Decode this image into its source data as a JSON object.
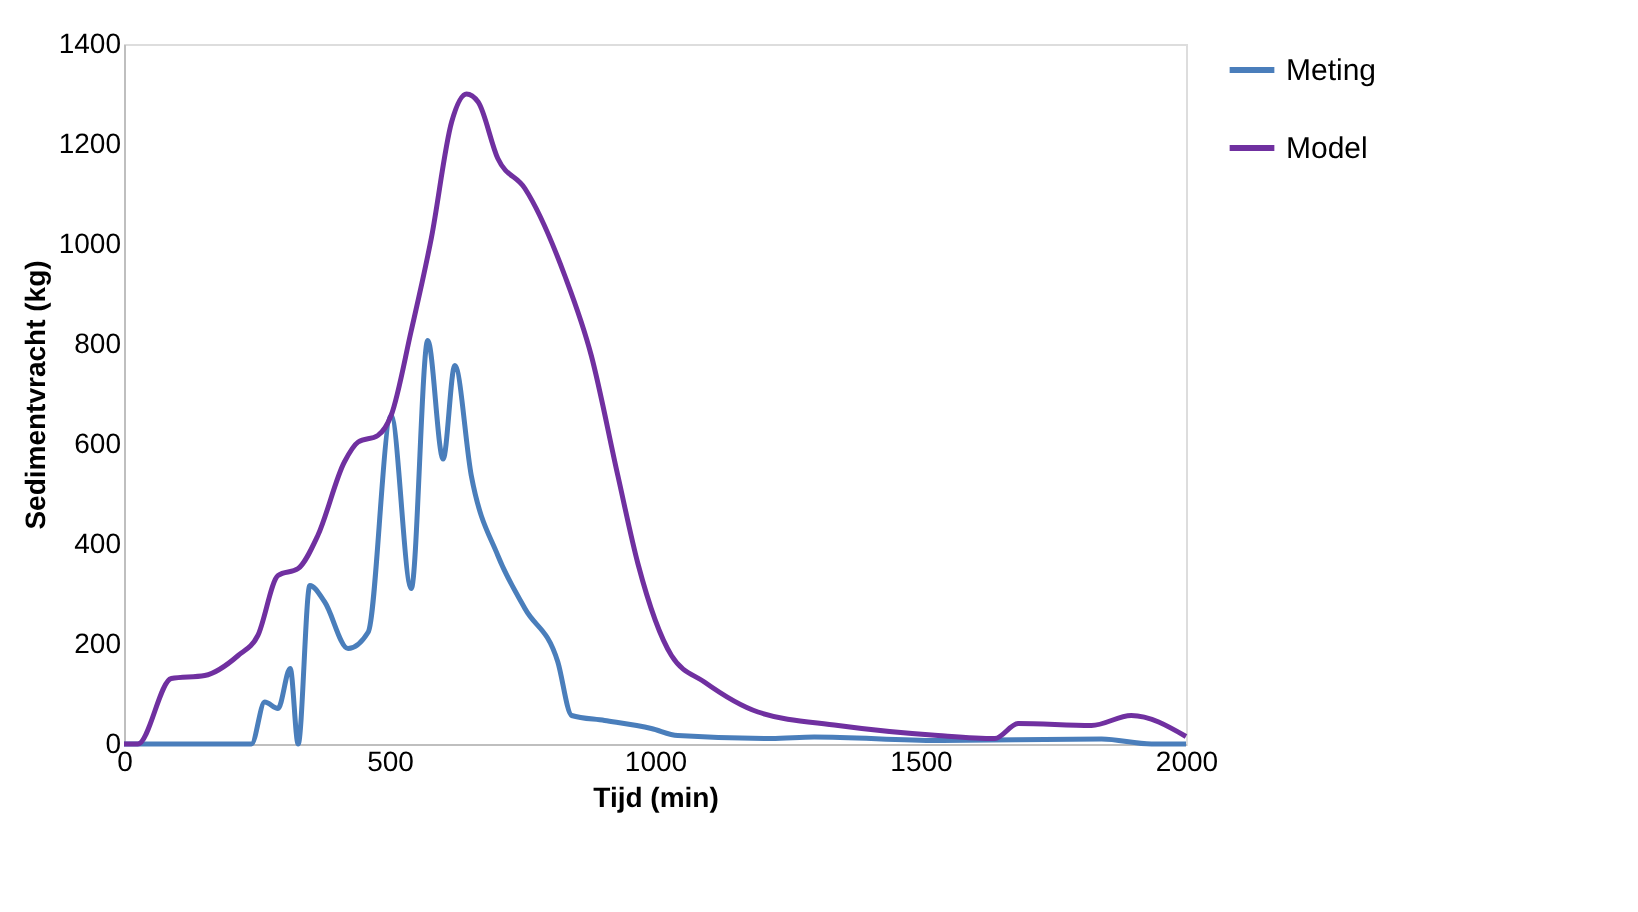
{
  "chart_data": {
    "type": "line",
    "xlabel": "Tijd (min)",
    "ylabel": "Sedimentvracht (kg)",
    "xlim": [
      0,
      2000
    ],
    "xticks": [
      0,
      500,
      1000,
      1500,
      2000
    ],
    "ylim": [
      0,
      1400
    ],
    "yticks": [
      0,
      200,
      400,
      600,
      800,
      1000,
      1200,
      1400
    ],
    "grid": false,
    "legend": "right",
    "marker": "none",
    "line_style": "solid",
    "series": [
      {
        "name": "Meting",
        "color": "#4a7ebb",
        "x": [
          0,
          240,
          265,
          290,
          313,
          328,
          350,
          378,
          422,
          460,
          503,
          541,
          572,
          601,
          623,
          654,
          704,
          755,
          817,
          843,
          905,
          993,
          1043,
          1219,
          1300,
          1533,
          1841,
          1935,
          2000
        ],
        "values": [
          0,
          0,
          84,
          71,
          151,
          0,
          317,
          284,
          191,
          224,
          657,
          311,
          807,
          570,
          757,
          537,
          377,
          271,
          164,
          57,
          47,
          31,
          17,
          11,
          14,
          7,
          10,
          0,
          0
        ]
      },
      {
        "name": "Model",
        "color": "#7030a0",
        "x": [
          0,
          26,
          89,
          152,
          215,
          252,
          290,
          328,
          365,
          415,
          441,
          478,
          503,
          541,
          579,
          617,
          645,
          667,
          704,
          755,
          830,
          880,
          930,
          968,
          1031,
          1093,
          1194,
          1345,
          1533,
          1640,
          1684,
          1822,
          1897,
          2000
        ],
        "values": [
          0,
          0,
          131,
          137,
          177,
          217,
          337,
          351,
          417,
          564,
          604,
          617,
          657,
          827,
          1013,
          1244,
          1300,
          1284,
          1171,
          1111,
          937,
          777,
          537,
          360,
          177,
          124,
          64,
          37,
          17,
          11,
          41,
          37,
          57,
          15
        ]
      }
    ]
  }
}
